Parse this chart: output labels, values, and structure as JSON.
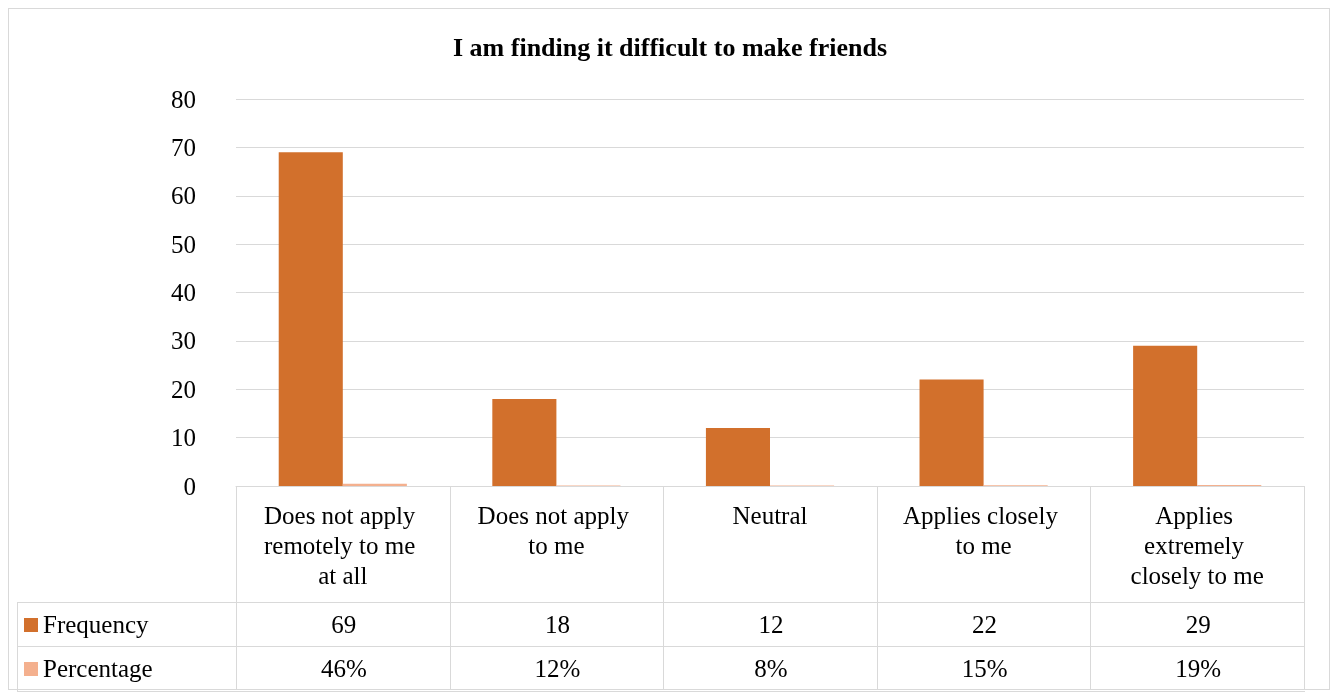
{
  "chart_data": {
    "type": "bar",
    "title": "I am finding it difficult to make friends",
    "categories": [
      "Does not apply remotely to me at all",
      "Does not apply to me",
      "Neutral",
      "Applies closely to me",
      "Applies extremely closely to me"
    ],
    "series": [
      {
        "name": "Frequency",
        "color": "#d2702c",
        "values": [
          69,
          18,
          12,
          22,
          29
        ]
      },
      {
        "name": "Percentage",
        "color": "#f4b08e",
        "values": [
          0.46,
          0.12,
          0.08,
          0.15,
          0.19
        ],
        "value_labels": [
          "46%",
          "12%",
          "8%",
          "15%",
          "19%"
        ]
      }
    ],
    "ylim": [
      0,
      80
    ],
    "yticks": [
      0,
      10,
      20,
      30,
      40,
      50,
      60,
      70,
      80
    ],
    "grid": true,
    "legend": "bottom",
    "data_labels": true
  }
}
